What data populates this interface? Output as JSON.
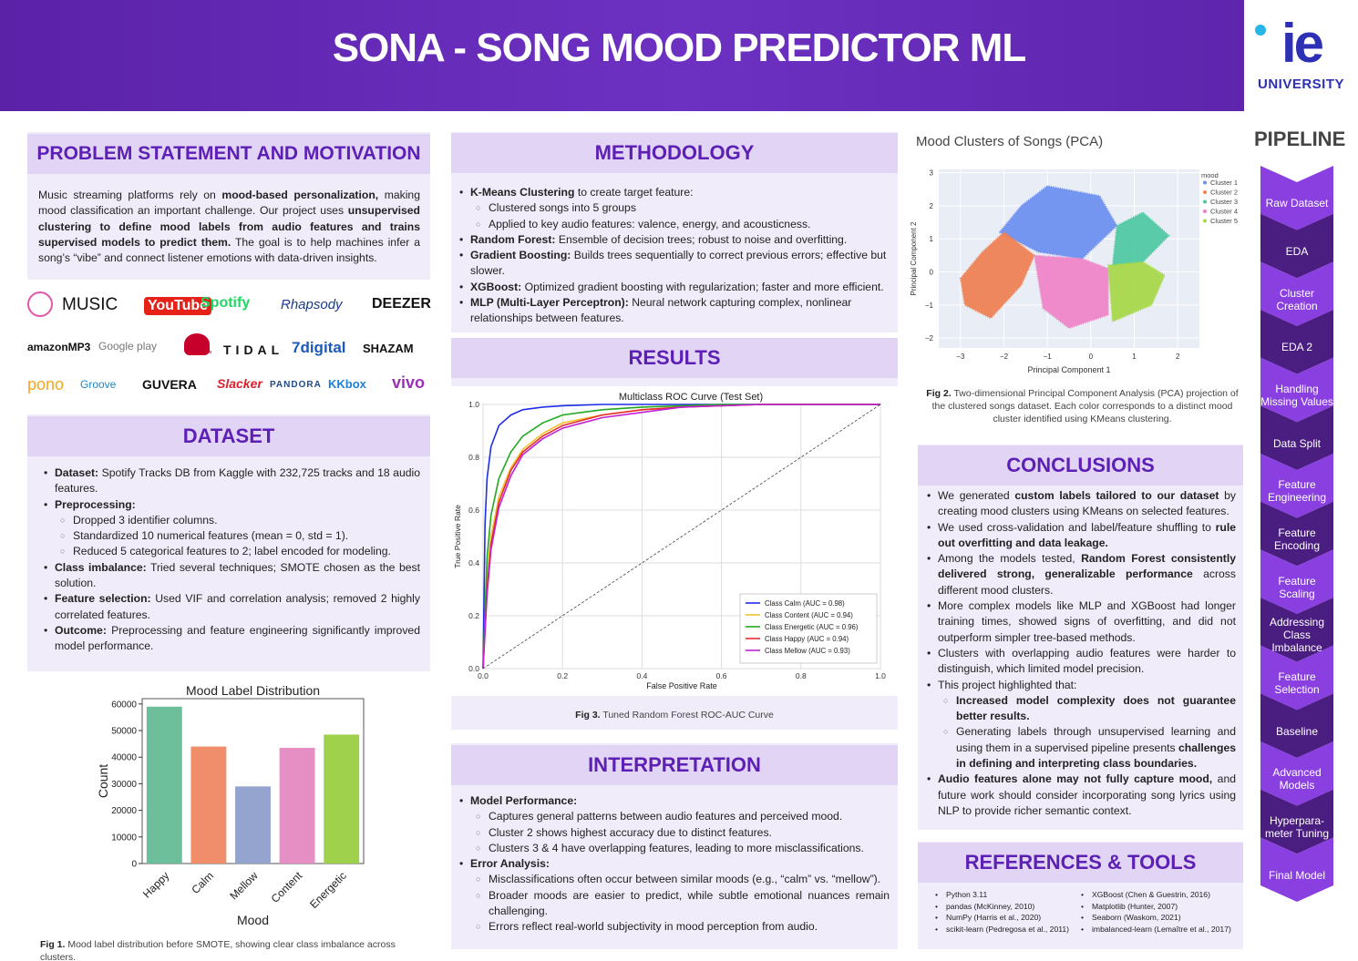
{
  "header": {
    "title": "SONA - SONG MOOD PREDICTOR ML",
    "logo_mark": "ie",
    "logo_text": "UNIVERSITY"
  },
  "problem": {
    "heading": "PROBLEM STATEMENT AND MOTIVATION",
    "p1": "Music streaming platforms rely on ",
    "b1": "mood-based personalization,",
    "p2": " making mood classification an important challenge. Our project uses ",
    "b2": "unsupervised clustering to define mood labels from audio features and trains supervised models to predict them.",
    "p3": " The goal is to help machines infer a song’s “vibe” and connect listener emotions with data-driven insights."
  },
  "logos": {
    "row1": [
      "MUSIC",
      "YouTube",
      "Spotify",
      "Rhapsody",
      "DEEZER"
    ],
    "row2": [
      "amazonMP3",
      "Google play",
      "iHeartRadio",
      "TIDAL",
      "7digital",
      "SHAZAM"
    ],
    "row3": [
      "pono",
      "Groove",
      "GUVERA",
      "Slacker",
      "PANDORA",
      "KKbox",
      "vivo"
    ]
  },
  "dataset": {
    "heading": "DATASET",
    "items": [
      {
        "bold": "Dataset:",
        "text": " Spotify Tracks DB from Kaggle with 232,725 tracks and 18 audio features."
      },
      {
        "bold": "Preprocessing:",
        "text": ""
      },
      {
        "sub": "Dropped 3 identifier columns."
      },
      {
        "sub": "Standardized 10 numerical features (mean = 0, std = 1)."
      },
      {
        "sub": "Reduced 5 categorical features to 2; label encoded for modeling."
      },
      {
        "bold": "Class imbalance:",
        "text": " Tried several techniques; SMOTE chosen as the best solution."
      },
      {
        "bold": "Feature selection:",
        "text": " Used VIF and correlation analysis; removed 2 highly correlated features."
      },
      {
        "bold": "Outcome:",
        "text": " Preprocessing and feature engineering significantly improved model performance."
      }
    ]
  },
  "fig1": {
    "caption_bold": "Fig 1.",
    "caption": " Mood label distribution before SMOTE, showing clear class imbalance across clusters."
  },
  "chart_data": [
    {
      "type": "bar",
      "title": "Mood Label Distribution",
      "xlabel": "Mood",
      "ylabel": "Count",
      "categories": [
        "Happy",
        "Calm",
        "Mellow",
        "Content",
        "Energetic"
      ],
      "values": [
        59000,
        44000,
        29000,
        43500,
        48500
      ],
      "colors": [
        "#6dbf9c",
        "#f08d6b",
        "#95a3cf",
        "#e68fc4",
        "#9fd14d"
      ],
      "ylim": [
        0,
        62000
      ],
      "yticks": [
        0,
        10000,
        20000,
        30000,
        40000,
        50000,
        60000
      ]
    },
    {
      "type": "line",
      "title": "Multiclass ROC Curve (Test Set)",
      "xlabel": "False Positive Rate",
      "ylabel": "True Positive Rate",
      "xlim": [
        0,
        1
      ],
      "ylim": [
        0,
        1
      ],
      "ticks": [
        "0.0",
        "0.2",
        "0.4",
        "0.6",
        "0.8",
        "1.0"
      ],
      "grid": true,
      "legend": "bottom-right",
      "series": [
        {
          "name": "Class Calm (AUC = 0.98)",
          "color": "#1f2ee6",
          "x": [
            0,
            0.005,
            0.01,
            0.02,
            0.04,
            0.07,
            0.1,
            0.15,
            0.2,
            0.3,
            0.5,
            1
          ],
          "y": [
            0,
            0.55,
            0.72,
            0.84,
            0.92,
            0.96,
            0.98,
            0.99,
            0.995,
            1,
            1,
            1
          ]
        },
        {
          "name": "Class Content (AUC = 0.94)",
          "color": "#f2c12e",
          "x": [
            0,
            0.01,
            0.02,
            0.04,
            0.07,
            0.1,
            0.15,
            0.2,
            0.3,
            0.4,
            0.5,
            0.7,
            1
          ],
          "y": [
            0,
            0.35,
            0.5,
            0.65,
            0.76,
            0.83,
            0.89,
            0.93,
            0.96,
            0.98,
            0.99,
            1,
            1
          ]
        },
        {
          "name": "Class Energetic (AUC = 0.96)",
          "color": "#21a821",
          "x": [
            0,
            0.01,
            0.02,
            0.04,
            0.07,
            0.1,
            0.15,
            0.2,
            0.3,
            0.4,
            0.6,
            1
          ],
          "y": [
            0,
            0.42,
            0.58,
            0.72,
            0.82,
            0.88,
            0.93,
            0.96,
            0.98,
            0.99,
            1,
            1
          ]
        },
        {
          "name": "Class Happy (AUC = 0.94)",
          "color": "#e62b2b",
          "x": [
            0,
            0.01,
            0.02,
            0.04,
            0.07,
            0.1,
            0.15,
            0.2,
            0.3,
            0.4,
            0.5,
            0.7,
            1
          ],
          "y": [
            0,
            0.3,
            0.47,
            0.63,
            0.75,
            0.82,
            0.88,
            0.92,
            0.96,
            0.98,
            0.99,
            1,
            1
          ]
        },
        {
          "name": "Class Mellow (AUC = 0.93)",
          "color": "#c21fd6",
          "x": [
            0,
            0.01,
            0.02,
            0.04,
            0.07,
            0.1,
            0.15,
            0.2,
            0.3,
            0.4,
            0.5,
            0.7,
            1
          ],
          "y": [
            0,
            0.28,
            0.45,
            0.61,
            0.73,
            0.81,
            0.87,
            0.91,
            0.95,
            0.97,
            0.99,
            1,
            1
          ]
        },
        {
          "name": "",
          "color": "#444444",
          "dashed": true,
          "x": [
            0,
            1
          ],
          "y": [
            0,
            1
          ]
        }
      ]
    },
    {
      "type": "scatter",
      "title": "Mood Clusters of Songs (PCA)",
      "xlabel": "Principal Component 1",
      "ylabel": "Principal Component 2",
      "xlim": [
        -3.5,
        2.5
      ],
      "ylim": [
        -2.3,
        3.1
      ],
      "xticks": [
        -3,
        -2,
        -1,
        0,
        1,
        2
      ],
      "yticks": [
        -2,
        -1,
        0,
        1,
        2,
        3
      ],
      "legend_title": "mood",
      "legend": "top-right",
      "series": [
        {
          "name": "Cluster 1",
          "color": "#6b8ff0",
          "points": [
            [
              -2.1,
              1.2
            ],
            [
              -1.6,
              2.0
            ],
            [
              -1.0,
              2.6
            ],
            [
              0.2,
              2.3
            ],
            [
              0.6,
              1.4
            ],
            [
              -0.2,
              0.4
            ],
            [
              -1.2,
              0.6
            ]
          ]
        },
        {
          "name": "Cluster 2",
          "color": "#f07f52",
          "points": [
            [
              -3.0,
              -0.2
            ],
            [
              -2.5,
              0.6
            ],
            [
              -2.0,
              1.2
            ],
            [
              -1.3,
              0.5
            ],
            [
              -1.6,
              -0.4
            ],
            [
              -2.3,
              -1.4
            ],
            [
              -2.9,
              -1.0
            ]
          ]
        },
        {
          "name": "Cluster 3",
          "color": "#4ec9a3",
          "points": [
            [
              0.6,
              1.4
            ],
            [
              1.2,
              1.8
            ],
            [
              1.8,
              1.1
            ],
            [
              1.2,
              0.3
            ],
            [
              0.5,
              0.2
            ]
          ]
        },
        {
          "name": "Cluster 4",
          "color": "#f082c8",
          "points": [
            [
              -1.3,
              0.5
            ],
            [
              -0.2,
              0.4
            ],
            [
              0.4,
              0.1
            ],
            [
              0.4,
              -1.3
            ],
            [
              -0.5,
              -1.7
            ],
            [
              -1.1,
              -1.1
            ]
          ]
        },
        {
          "name": "Cluster 5",
          "color": "#a6d847",
          "points": [
            [
              0.4,
              0.2
            ],
            [
              1.2,
              0.3
            ],
            [
              1.7,
              -0.1
            ],
            [
              1.4,
              -1.0
            ],
            [
              0.5,
              -1.5
            ]
          ]
        }
      ]
    }
  ],
  "methodology": {
    "heading": "METHODOLOGY",
    "items": [
      {
        "bold": "K-Means Clustering",
        "text": " to create target feature:"
      },
      {
        "sub": "Clustered songs into 5 groups"
      },
      {
        "sub": "Applied to key audio features: valence, energy, and acousticness."
      },
      {
        "bold": "Random Forest:",
        "text": " Ensemble of decision trees; robust to noise and overfitting."
      },
      {
        "bold": "Gradient Boosting:",
        "text": " Builds trees sequentially to correct previous errors; effective but slower."
      },
      {
        "bold": "XGBoost:",
        "text": " Optimized gradient boosting with regularization; faster and more efficient."
      },
      {
        "bold": "MLP (Multi-Layer Perceptron):",
        "text": " Neural network capturing complex, nonlinear relationships between features."
      }
    ]
  },
  "results": {
    "heading": "RESULTS"
  },
  "fig3": {
    "caption_bold": "Fig 3.",
    "caption": " Tuned Random Forest ROC-AUC Curve"
  },
  "interpretation": {
    "heading": "INTERPRETATION",
    "items": [
      {
        "bold": "Model Performance:",
        "text": ""
      },
      {
        "sub": "Captures general patterns between audio features and perceived mood."
      },
      {
        "sub": "Cluster 2 shows highest accuracy due to distinct features."
      },
      {
        "sub": "Clusters 3 & 4 have overlapping features, leading to more misclassifications."
      },
      {
        "bold": "Error Analysis:",
        "text": ""
      },
      {
        "sub": "Misclassifications often occur between similar moods (e.g., “calm” vs. “mellow”)."
      },
      {
        "sub": "Broader moods are easier to predict, while subtle emotional nuances remain challenging."
      },
      {
        "sub": "Errors reflect real-world subjectivity in mood perception from audio."
      }
    ]
  },
  "fig2": {
    "caption_bold": "Fig 2.",
    "caption": " Two-dimensional Principal Component Analysis (PCA) projection of the clustered songs dataset. Each color corresponds to a distinct mood cluster identified using KMeans clustering."
  },
  "conclusions": {
    "heading": "CONCLUSIONS",
    "c1a": "We generated ",
    "c1b": "custom labels tailored to our dataset",
    "c1c": " by creating mood clusters using KMeans on selected features.",
    "c2a": "We used cross-validation and label/feature shuffling to ",
    "c2b": "rule out overfitting and data leakage.",
    "c3a": "Among the models tested, ",
    "c3b": "Random Forest consistently delivered strong, generalizable performance",
    "c3c": " across different mood clusters.",
    "c4": "More complex models like MLP and XGBoost had longer training times, showed signs of overfitting, and did not outperform simpler tree-based methods.",
    "c5": "Clusters with overlapping audio features were harder to distinguish, which limited model precision.",
    "c6": "This project highlighted that:",
    "c7": "Increased model complexity does not guarantee better results.",
    "c8a": "Generating labels through unsupervised learning and using them in a supervised pipeline presents ",
    "c8b": "challenges in defining and interpreting class boundaries.",
    "c9a": "Audio features alone may not fully capture mood,",
    "c9b": " and future work should consider incorporating song lyrics using NLP to provide richer semantic context."
  },
  "references": {
    "heading": "REFERENCES & TOOLS",
    "left": [
      "Python 3.11",
      "pandas (McKinney, 2010)",
      "NumPy (Harris et al., 2020)",
      "scikit-learn (Pedregosa et al., 2011)"
    ],
    "right": [
      "XGBoost (Chen & Guestrin, 2016)",
      "Matplotlib (Hunter, 2007)",
      "Seaborn (Waskom, 2021)",
      "imbalanced-learn (Lemaître et al., 2017)"
    ]
  },
  "pipeline": {
    "title": "PIPELINE",
    "steps": [
      "Raw Dataset",
      "EDA",
      "Cluster Creation",
      "EDA 2",
      "Handling Missing Values",
      "Data Split",
      "Feature Engineering",
      "Feature Encoding",
      "Feature Scaling",
      "Addressing Class Imbalance",
      "Feature Selection",
      "Baseline",
      "Advanced Models",
      "Hyperpara-meter Tuning",
      "Final Model"
    ],
    "colors": [
      "#8a40e0",
      "#4a1d80"
    ]
  }
}
